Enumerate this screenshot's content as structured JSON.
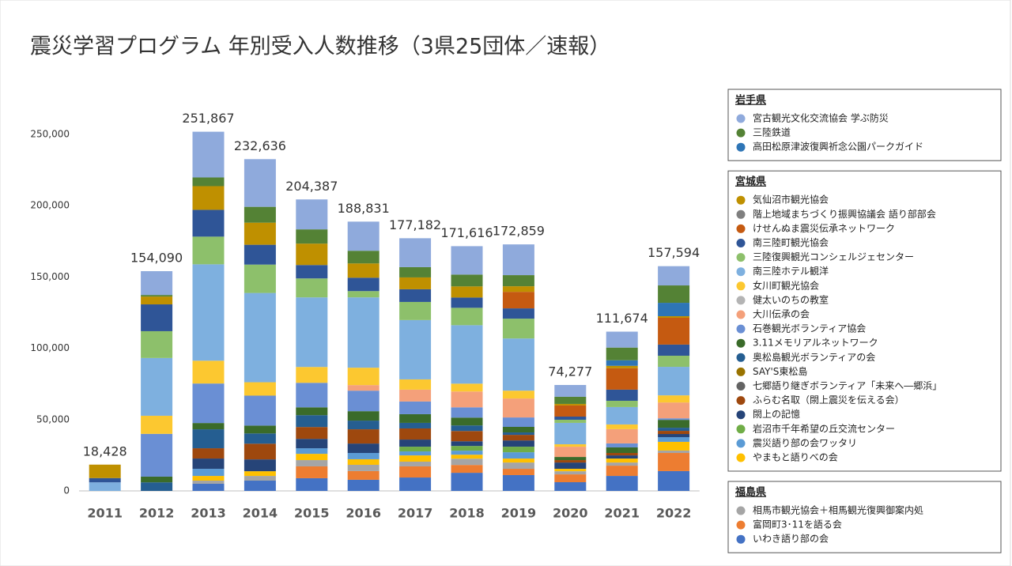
{
  "chart_data": {
    "type": "stacked_bar",
    "title": "震災学習プログラム 年別受入人数推移（3県25団体／速報）",
    "categories": [
      "2011",
      "2012",
      "2013",
      "2014",
      "2015",
      "2016",
      "2017",
      "2018",
      "2019",
      "2020",
      "2021",
      "2022"
    ],
    "totals": [
      18428,
      154090,
      251867,
      232636,
      204387,
      188831,
      177182,
      171616,
      172859,
      74277,
      111674,
      157594
    ],
    "total_labels": [
      "18,428",
      "154,090",
      "251,867",
      "232,636",
      "204,387",
      "188,831",
      "177,182",
      "171,616",
      "172,859",
      "74,277",
      "111,674",
      "157,594"
    ],
    "ylim": [
      0,
      250000
    ],
    "yticks": [
      0,
      {
        "value": 50000,
        "label": "50,000"
      },
      {
        "value": 100000,
        "label": "100,000"
      },
      {
        "value": 150000,
        "label": "150,000"
      },
      {
        "value": 200000,
        "label": "200,000"
      },
      {
        "value": 250000,
        "label": "250,000"
      }
    ],
    "groups": [
      {
        "name": "岩手県",
        "series": [
          {
            "name": "宮古観光文化交流協会 学ぶ防災",
            "color": "#8faadc",
            "values": [
              0,
              16690,
              32067,
              33436,
              20987,
              20431,
              20282,
              19916,
              21559,
              8277,
              11174,
              13494
            ]
          },
          {
            "name": "三陸鉄道",
            "color": "#548235",
            "values": [
              0,
              1100,
              6100,
              11100,
              10000,
              8900,
              7200,
              8300,
              7800,
              5000,
              8900,
              12200
            ]
          },
          {
            "name": "高田松原津波復興祈念公園パークガイド",
            "color": "#2e75b6",
            "values": [
              0,
              0,
              0,
              0,
              0,
              0,
              0,
              0,
              0,
              0,
              3900,
              9400
            ]
          }
        ]
      },
      {
        "name": "宮城県",
        "series": [
          {
            "name": "気仙沼市観光協会",
            "color": "#bf9000",
            "values": [
              9428,
              5500,
              16600,
              15500,
              15000,
              10000,
              8300,
              7800,
              3900,
              1100,
              1700,
              1100
            ]
          },
          {
            "name": "階上地域まちづくり振興協議会 語り部部会",
            "color": "#7f7f7f",
            "values": [
              0,
              0,
              0,
              0,
              0,
              0,
              0,
              0,
              0,
              0,
              0,
              0
            ]
          },
          {
            "name": "けせんぬま震災伝承ネットワーク",
            "color": "#c55a11",
            "values": [
              0,
              0,
              0,
              0,
              0,
              0,
              0,
              0,
              11600,
              7800,
              15000,
              18800
            ]
          },
          {
            "name": "南三陸町観光協会",
            "color": "#2f5597",
            "values": [
              3000,
              18800,
              18800,
              13900,
              9400,
              9400,
              8900,
              7200,
              7200,
              2200,
              7800,
              7800
            ]
          },
          {
            "name": "三陸復興観光コンシェルジェセンター",
            "color": "#8dc06b",
            "values": [
              0,
              18800,
              19400,
              19900,
              13300,
              4400,
              12700,
              12200,
              13900,
              2200,
              4400,
              7800
            ]
          },
          {
            "name": "南三陸ホテル観洋",
            "color": "#7eb0df",
            "values": [
              6000,
              40500,
              67600,
              62600,
              48800,
              49300,
              41600,
              41000,
              36600,
              15000,
              12200,
              20000
            ]
          },
          {
            "name": "女川町観光協会",
            "color": "#fcc830",
            "values": [
              0,
              12700,
              16000,
              9400,
              11100,
              12200,
              7200,
              5500,
              5500,
              1700,
              3300,
              5000
            ]
          },
          {
            "name": "健太いのちの教室",
            "color": "#b4b4b4",
            "values": [
              0,
              0,
              0,
              0,
              0,
              0,
              0,
              0,
              0,
              0,
              0,
              0
            ]
          },
          {
            "name": "大川伝承の会",
            "color": "#f4a07a",
            "values": [
              0,
              0,
              0,
              0,
              0,
              3900,
              8300,
              11100,
              13300,
              7200,
              10000,
              11100
            ]
          },
          {
            "name": "石巻観光ボランティア協会",
            "color": "#6a8fd4",
            "values": [
              0,
              30000,
              27700,
              21000,
              17200,
              14400,
              8900,
              7200,
              6600,
              0,
              2800,
              1100
            ]
          },
          {
            "name": "3.11メモリアルネットワーク",
            "color": "#3a6b2a",
            "values": [
              0,
              4000,
              4400,
              5500,
              5500,
              6600,
              6100,
              5500,
              3900,
              2200,
              3900,
              5500
            ]
          },
          {
            "name": "奥松島観光ボランティアの会",
            "color": "#255e91",
            "values": [
              0,
              6000,
              13300,
              7200,
              8300,
              6100,
              3900,
              3900,
              1700,
              0,
              0,
              2200
            ]
          },
          {
            "name": "SAY'S東松島",
            "color": "#997300",
            "values": [
              0,
              0,
              0,
              0,
              0,
              0,
              0,
              0,
              0,
              0,
              0,
              0
            ]
          },
          {
            "name": "七郷語り継ぎボランティア「未来へ―郷浜」",
            "color": "#636363",
            "values": [
              0,
              0,
              0,
              0,
              0,
              0,
              0,
              0,
              0,
              0,
              0,
              0
            ]
          },
          {
            "name": "ふらむ名取（閖上震災を伝える会）",
            "color": "#9e480e",
            "values": [
              0,
              0,
              7200,
              11000,
              8300,
              10000,
              7800,
              7200,
              3900,
              1700,
              1700,
              2200
            ]
          },
          {
            "name": "閖上の記憶",
            "color": "#264478",
            "values": [
              0,
              0,
              7200,
              8300,
              6600,
              6600,
              5000,
              3300,
              4400,
              4400,
              2200,
              2200
            ]
          },
          {
            "name": "岩沼市千年希望の丘交流センター",
            "color": "#70ad47",
            "values": [
              0,
              0,
              0,
              0,
              0,
              0,
              3300,
              3300,
              3900,
              0,
              0,
              0
            ]
          },
          {
            "name": "震災語り部の会ワッタリ",
            "color": "#5b9bd5",
            "values": [
              0,
              0,
              5000,
              0,
              3900,
              4400,
              2800,
              2800,
              4400,
              0,
              0,
              3300
            ]
          },
          {
            "name": "やまもと語りべの会",
            "color": "#ffc000",
            "values": [
              0,
              0,
              3300,
              3300,
              4400,
              3900,
              4400,
              2800,
              2800,
              1700,
              2800,
              6100
            ]
          }
        ]
      },
      {
        "name": "福島県",
        "series": [
          {
            "name": "相馬市観光協会＋相馬観光復興御案内処",
            "color": "#a5a5a5",
            "values": [
              0,
              0,
              2200,
              3300,
              4400,
              4400,
              3300,
              4400,
              4400,
              2200,
              2200,
              1700
            ]
          },
          {
            "name": "富岡町3･11を語る会",
            "color": "#ed7d31",
            "values": [
              0,
              0,
              0,
              0,
              8300,
              6100,
              7800,
              5500,
              4400,
              5500,
              7200,
              12700
            ]
          },
          {
            "name": "いわき語り部の会",
            "color": "#4472c4",
            "values": [
              0,
              0,
              5000,
              7200,
              8900,
              7800,
              9400,
              12700,
              11100,
              6100,
              10500,
              13900
            ]
          }
        ]
      }
    ]
  }
}
